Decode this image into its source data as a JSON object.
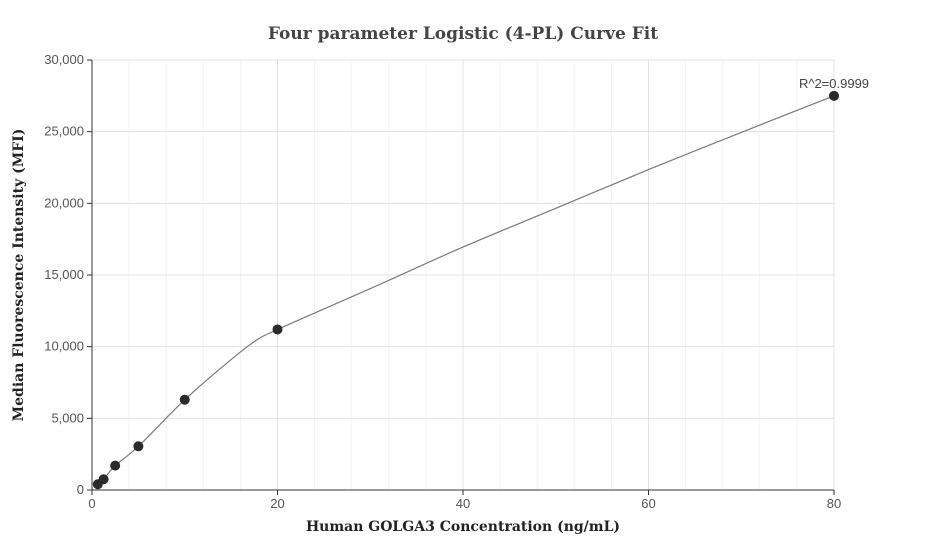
{
  "chart_data": {
    "type": "scatter",
    "title": "Four parameter Logistic (4-PL) Curve Fit",
    "xlabel": "Human GOLGA3 Concentration (ng/mL)",
    "ylabel": "Median Fluorescence Intensity (MFI)",
    "xlim": [
      0,
      80
    ],
    "ylim": [
      0,
      30000
    ],
    "x_ticks": [
      0,
      20,
      40,
      60,
      80
    ],
    "x_tick_labels": [
      "0",
      "20",
      "40",
      "60",
      "80"
    ],
    "y_ticks": [
      0,
      5000,
      10000,
      15000,
      20000,
      25000,
      30000
    ],
    "y_tick_labels": [
      "0",
      "5,000",
      "10,000",
      "15,000",
      "20,000",
      "25,000",
      "30,000"
    ],
    "grid": true,
    "points": {
      "x": [
        0.625,
        1.25,
        2.5,
        5,
        10,
        20,
        80
      ],
      "y": [
        400,
        750,
        1700,
        3050,
        6300,
        11200,
        27500
      ]
    },
    "fit_curve": {
      "x": [
        0.625,
        1.25,
        2.5,
        5,
        10,
        15,
        17.5,
        20,
        30,
        40,
        50,
        60,
        70,
        80
      ],
      "y": [
        400,
        750,
        1700,
        3050,
        6300,
        9100,
        10350,
        11200,
        14050,
        16950,
        19650,
        22350,
        24950,
        27500
      ]
    },
    "annotation": "R^2=0.9999"
  }
}
